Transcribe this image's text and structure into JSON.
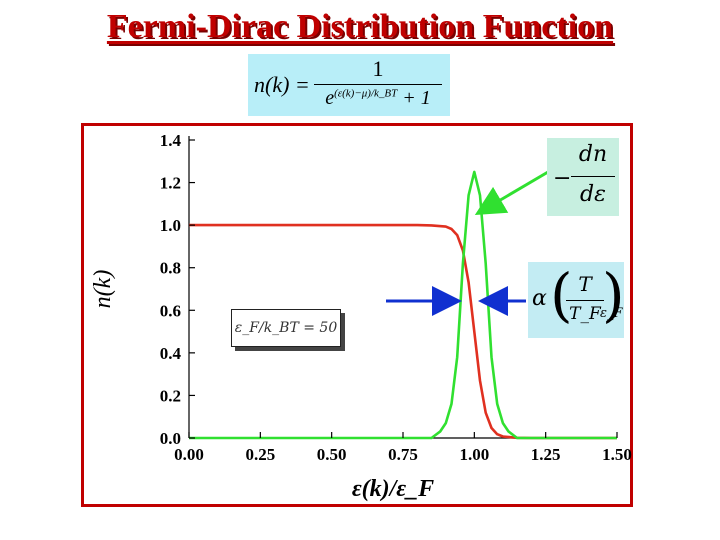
{
  "title": "Fermi-Dirac Distribution Function",
  "formula": {
    "lhs": "n(k) =",
    "numerator": "1",
    "denominator_base": "e",
    "denominator_exponent": "(ε(k)−μ)/k_BT",
    "denominator_tail": "+ 1"
  },
  "annotations": {
    "derivative": {
      "minus": "−",
      "top": "dn",
      "bottom": "dε"
    },
    "width": {
      "alpha": "α",
      "frac_top": "T",
      "frac_bottom": "T_F",
      "eps": "ε_F"
    },
    "parameter": "ε_F/k_BT = 50"
  },
  "chart_data": {
    "type": "line",
    "title": "",
    "xlabel": "ε(k)/ε_F",
    "ylabel": "n(k)",
    "xlim": [
      0.0,
      1.5
    ],
    "ylim": [
      0.0,
      1.4
    ],
    "xticks": [
      "0.00",
      "0.25",
      "0.50",
      "0.75",
      "1.00",
      "1.25",
      "1.50"
    ],
    "yticks": [
      "0.0",
      "0.2",
      "0.4",
      "0.6",
      "0.8",
      "1.0",
      "1.2",
      "1.4"
    ],
    "grid": false,
    "legend": "none",
    "series": [
      {
        "color": "#e03020",
        "x": [
          0.0,
          0.5,
          0.8,
          0.85,
          0.9,
          0.92,
          0.94,
          0.96,
          0.98,
          1.0,
          1.02,
          1.04,
          1.06,
          1.08,
          1.1,
          1.15,
          1.2,
          1.5
        ],
        "y": [
          1.0,
          1.0,
          1.0,
          0.999,
          0.993,
          0.982,
          0.953,
          0.881,
          0.731,
          0.5,
          0.269,
          0.119,
          0.047,
          0.018,
          0.007,
          0.001,
          0.0,
          0.0
        ]
      },
      {
        "color": "#30e030",
        "x": [
          0.0,
          0.85,
          0.88,
          0.9,
          0.92,
          0.94,
          0.96,
          0.98,
          1.0,
          1.02,
          1.04,
          1.06,
          1.08,
          1.1,
          1.12,
          1.15,
          1.5
        ],
        "y": [
          0.0,
          0.0,
          0.03,
          0.07,
          0.16,
          0.38,
          0.82,
          1.14,
          1.25,
          1.14,
          0.82,
          0.38,
          0.16,
          0.07,
          0.03,
          0.0,
          0.0
        ]
      }
    ]
  },
  "colors": {
    "accent": "#c00000",
    "fd_curve": "#e03020",
    "derivative_curve": "#30e030",
    "arrows_width": "#1030d0"
  }
}
